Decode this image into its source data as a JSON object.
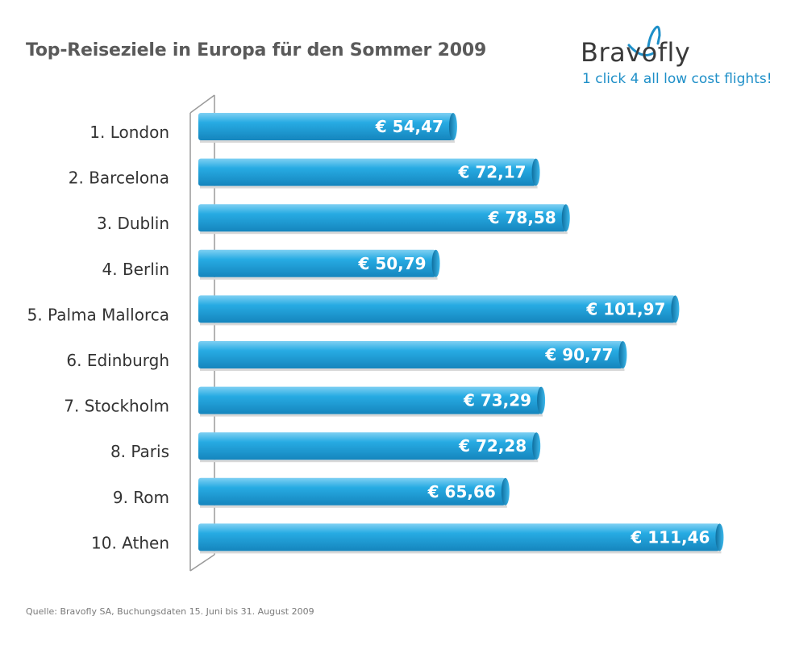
{
  "chart_data": {
    "type": "bar",
    "orientation": "horizontal",
    "title": "Top-Reiseziele in Europa für den Sommer 2009",
    "categories": [
      "1. London",
      "2. Barcelona",
      "3. Dublin",
      "4. Berlin",
      "5. Palma Mallorca",
      "6. Edinburgh",
      "7. Stockholm",
      "8. Paris",
      "9. Rom",
      "10. Athen"
    ],
    "values": [
      54.47,
      72.17,
      78.58,
      50.79,
      101.97,
      90.77,
      73.29,
      72.28,
      65.66,
      111.46
    ],
    "data_labels": [
      "€ 54,47",
      "€ 72,17",
      "€ 78,58",
      "€ 50,79",
      "€ 101,97",
      "€ 90,77",
      "€ 73,29",
      "€ 72,28",
      "€ 65,66",
      "€ 111,46"
    ],
    "xlabel": "",
    "ylabel": "",
    "xlim": [
      0,
      111.46
    ],
    "grid": false,
    "bar_color": "#1a9fd9"
  },
  "brand": {
    "name": "Bravofly",
    "tagline": "1 click 4 all low cost flights!",
    "accent": "#1e8fc8"
  },
  "source": "Quelle: Bravofly SA, Buchungsdaten 15. Juni bis 31. August 2009"
}
